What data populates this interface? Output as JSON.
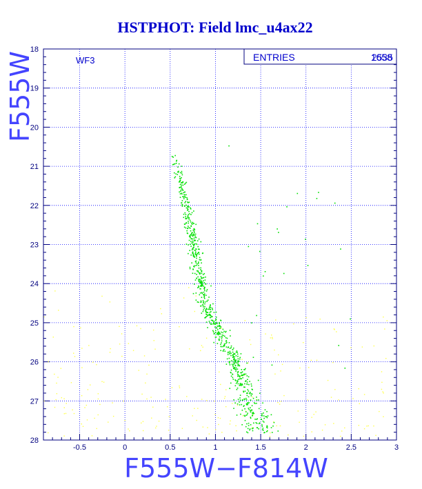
{
  "colors": {
    "background": "#ffffff",
    "frame": "#00007f",
    "grid": "#0000ff",
    "title": "#0000cc",
    "axis_label": "#4444ff",
    "primary_points": "#00e000",
    "secondary_points": "#ffff44"
  },
  "chart_data": {
    "type": "scatter",
    "title": "HSTPHOT: Field lmc_u4ax22",
    "xlabel": "F555W−F814W",
    "ylabel": "F555W",
    "xlim": [
      -0.9,
      3.0
    ],
    "ylim": [
      28,
      18
    ],
    "y_inverted": true,
    "grid": true,
    "x_ticks": [
      "-0.5",
      "0",
      "0.5",
      "1",
      "1.5",
      "2",
      "2.5",
      "3"
    ],
    "y_ticks": [
      "18",
      "19",
      "20",
      "21",
      "22",
      "23",
      "24",
      "25",
      "26",
      "27",
      "28"
    ],
    "panel_label": "WF3",
    "stats_box": {
      "label": "ENTRIES",
      "values": [
        "1658",
        "2535"
      ]
    },
    "series": [
      {
        "role": "primary",
        "color": "#00e000",
        "count": 820
      },
      {
        "role": "secondary",
        "color": "#ffff44",
        "count": 230
      }
    ]
  }
}
